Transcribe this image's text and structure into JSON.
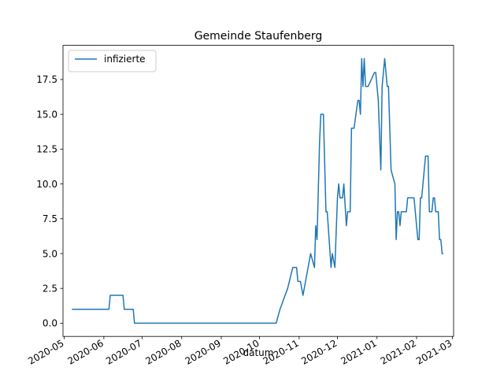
{
  "chart_data": {
    "type": "line",
    "title": "Gemeinde Staufenberg",
    "xlabel": "datum",
    "ylabel": "",
    "legend": {
      "placement": "top-left",
      "entries": [
        "infizierte"
      ]
    },
    "grid": false,
    "ylim": [
      -0.95,
      19.95
    ],
    "xlim": [
      "2020-04-30",
      "2021-03-02"
    ],
    "x_ticks": [
      "2020-05",
      "2020-06",
      "2020-07",
      "2020-08",
      "2020-09",
      "2020-10",
      "2020-11",
      "2020-12",
      "2021-01",
      "2021-02",
      "2021-03"
    ],
    "y_ticks": [
      "0.0",
      "2.5",
      "5.0",
      "7.5",
      "10.0",
      "12.5",
      "15.0",
      "17.5"
    ],
    "series": [
      {
        "name": "infizierte",
        "color": "#1f77b4",
        "points": [
          [
            "2020-05-07",
            1
          ],
          [
            "2020-06-05",
            1
          ],
          [
            "2020-06-06",
            2
          ],
          [
            "2020-06-16",
            2
          ],
          [
            "2020-06-17",
            1
          ],
          [
            "2020-06-24",
            1
          ],
          [
            "2020-06-25",
            0
          ],
          [
            "2020-10-14",
            0
          ],
          [
            "2020-10-17",
            1
          ],
          [
            "2020-10-23",
            2.5
          ],
          [
            "2020-10-27",
            4
          ],
          [
            "2020-10-30",
            4
          ],
          [
            "2020-10-31",
            3
          ],
          [
            "2020-11-02",
            3
          ],
          [
            "2020-11-04",
            2
          ],
          [
            "2020-11-06",
            3
          ],
          [
            "2020-11-08",
            4
          ],
          [
            "2020-11-10",
            5
          ],
          [
            "2020-11-13",
            4
          ],
          [
            "2020-11-14",
            7
          ],
          [
            "2020-11-15",
            6
          ],
          [
            "2020-11-17",
            13
          ],
          [
            "2020-11-18",
            15
          ],
          [
            "2020-11-20",
            15
          ],
          [
            "2020-11-22",
            8
          ],
          [
            "2020-11-23",
            8
          ],
          [
            "2020-11-26",
            4
          ],
          [
            "2020-11-27",
            5
          ],
          [
            "2020-11-29",
            4
          ],
          [
            "2020-12-01",
            9
          ],
          [
            "2020-12-02",
            10
          ],
          [
            "2020-12-03",
            9
          ],
          [
            "2020-12-05",
            9
          ],
          [
            "2020-12-06",
            10
          ],
          [
            "2020-12-08",
            7
          ],
          [
            "2020-12-09",
            8
          ],
          [
            "2020-12-11",
            8
          ],
          [
            "2020-12-12",
            14
          ],
          [
            "2020-12-14",
            14
          ],
          [
            "2020-12-17",
            16
          ],
          [
            "2020-12-18",
            16
          ],
          [
            "2020-12-19",
            15
          ],
          [
            "2020-12-20",
            19
          ],
          [
            "2020-12-21",
            17
          ],
          [
            "2020-12-22",
            19
          ],
          [
            "2020-12-23",
            17
          ],
          [
            "2020-12-25",
            17
          ],
          [
            "2020-12-30",
            18
          ],
          [
            "2020-12-31",
            18
          ],
          [
            "2021-01-02",
            16
          ],
          [
            "2021-01-04",
            11
          ],
          [
            "2021-01-05",
            17
          ],
          [
            "2021-01-07",
            19
          ],
          [
            "2021-01-09",
            17
          ],
          [
            "2021-01-10",
            17
          ],
          [
            "2021-01-12",
            11
          ],
          [
            "2021-01-15",
            10
          ],
          [
            "2021-01-16",
            6
          ],
          [
            "2021-01-17",
            8
          ],
          [
            "2021-01-18",
            8
          ],
          [
            "2021-01-19",
            7
          ],
          [
            "2021-01-20",
            8
          ],
          [
            "2021-01-24",
            8
          ],
          [
            "2021-01-25",
            9
          ],
          [
            "2021-01-30",
            9
          ],
          [
            "2021-02-02",
            6
          ],
          [
            "2021-02-03",
            6
          ],
          [
            "2021-02-04",
            9
          ],
          [
            "2021-02-05",
            9
          ],
          [
            "2021-02-08",
            12
          ],
          [
            "2021-02-10",
            12
          ],
          [
            "2021-02-11",
            8
          ],
          [
            "2021-02-13",
            8
          ],
          [
            "2021-02-14",
            9
          ],
          [
            "2021-02-15",
            9
          ],
          [
            "2021-02-16",
            8
          ],
          [
            "2021-02-18",
            8
          ],
          [
            "2021-02-19",
            6
          ],
          [
            "2021-02-20",
            6
          ],
          [
            "2021-02-21",
            5
          ],
          [
            "2021-02-22",
            5
          ]
        ]
      }
    ]
  }
}
